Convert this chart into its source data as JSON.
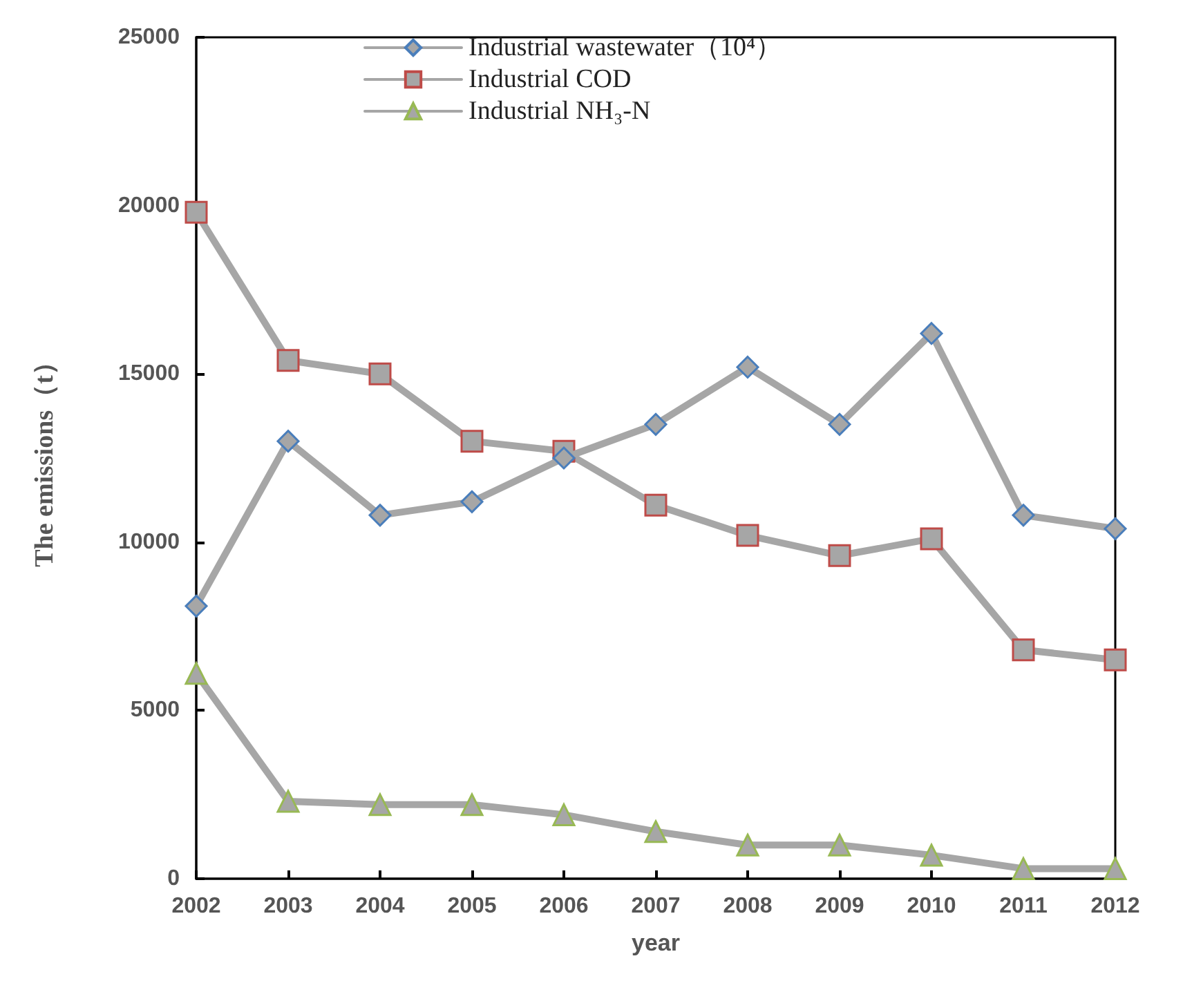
{
  "chart_data": {
    "type": "line",
    "xlabel": "year",
    "ylabel": "The emissions（t）",
    "x": [
      2002,
      2003,
      2004,
      2005,
      2006,
      2007,
      2008,
      2009,
      2010,
      2011,
      2012
    ],
    "xlim": [
      2002,
      2012
    ],
    "xticks": [
      2002,
      2003,
      2004,
      2005,
      2006,
      2007,
      2008,
      2009,
      2010,
      2011,
      2012
    ],
    "ylim": [
      0,
      25000
    ],
    "yticks": [
      0,
      5000,
      10000,
      15000,
      20000,
      25000
    ],
    "grid": false,
    "legend": "top",
    "line_style": "solid",
    "series": [
      {
        "name": "Industrial wastewater（10⁴）",
        "color": "#a6a6a6",
        "marker": "diamond",
        "values": [
          8100,
          13000,
          10800,
          11200,
          12500,
          13500,
          15200,
          13500,
          16200,
          10800,
          10400
        ]
      },
      {
        "name": "Industrial COD",
        "color": "#a6a6a6",
        "marker": "square",
        "values": [
          19800,
          15400,
          15000,
          13000,
          12700,
          11100,
          10200,
          9600,
          10100,
          6800,
          6500
        ]
      },
      {
        "name": "Industrial NH₃-N",
        "color": "#a6a6a6",
        "marker": "triangle",
        "values": [
          6100,
          2300,
          2200,
          2200,
          1900,
          1400,
          1000,
          1000,
          700,
          300,
          300
        ]
      }
    ]
  }
}
